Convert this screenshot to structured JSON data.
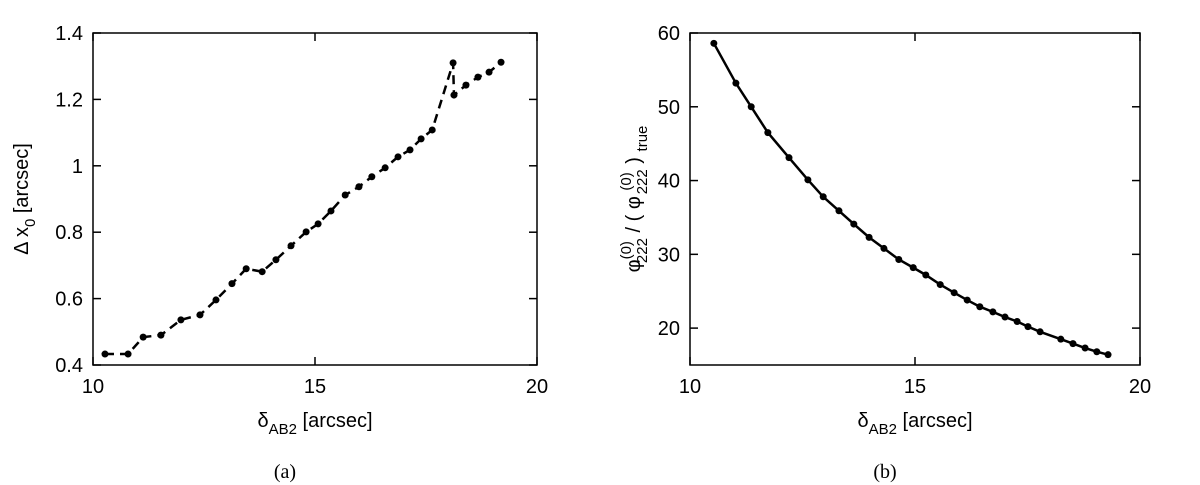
{
  "chart_data": [
    {
      "type": "line",
      "caption": "(a)",
      "xlabel": {
        "symbol": "δ",
        "sub": "AB2",
        "unit": "[arcsec]"
      },
      "ylabel": {
        "symbol": "Δ x",
        "sub": "0",
        "unit": "[arcsec]"
      },
      "x": [
        10.27,
        10.79,
        11.13,
        11.53,
        11.98,
        12.41,
        12.77,
        13.13,
        13.45,
        13.81,
        14.12,
        14.46,
        14.8,
        15.07,
        15.36,
        15.68,
        15.99,
        16.28,
        16.58,
        16.87,
        17.14,
        17.39,
        17.64,
        18.11,
        18.13,
        18.4,
        18.67,
        18.92,
        19.19
      ],
      "series": [
        {
          "color": "#000000",
          "line_style": "dashed",
          "values": [
            0.433,
            0.433,
            0.484,
            0.49,
            0.536,
            0.551,
            0.596,
            0.645,
            0.69,
            0.681,
            0.717,
            0.759,
            0.801,
            0.825,
            0.864,
            0.912,
            0.937,
            0.967,
            0.994,
            1.027,
            1.048,
            1.081,
            1.108,
            1.31,
            1.213,
            1.243,
            1.267,
            1.282,
            1.312
          ]
        }
      ],
      "xlim": [
        10,
        20
      ],
      "xticks": [
        10,
        15,
        20
      ],
      "ylim": [
        0.4,
        1.4
      ],
      "yticks": [
        0.4,
        0.6,
        0.8,
        1,
        1.2,
        1.4
      ]
    },
    {
      "type": "line",
      "caption": "(b)",
      "xlabel": {
        "symbol": "δ",
        "sub": "AB2",
        "unit": "[arcsec]"
      },
      "ylabel": {
        "symbol": "φ",
        "sup": "(0)",
        "sub": "222",
        "sep": "/ (",
        "symbol2": "φ",
        "sup2": "(0)",
        "sub2": "222",
        "close": ")",
        "close_sub": "true"
      },
      "x": [
        10.53,
        11.02,
        11.36,
        11.73,
        12.2,
        12.62,
        12.96,
        13.31,
        13.64,
        13.98,
        14.31,
        14.64,
        14.96,
        15.24,
        15.56,
        15.87,
        16.16,
        16.44,
        16.73,
        17.0,
        17.27,
        17.51,
        17.78,
        18.24,
        18.51,
        18.78,
        19.04,
        19.29
      ],
      "series": [
        {
          "color": "#000000",
          "line_style": "solid",
          "values": [
            58.6,
            53.2,
            50,
            46.5,
            43.1,
            40.1,
            37.8,
            35.9,
            34.1,
            32.3,
            30.8,
            29.3,
            28.2,
            27.2,
            25.9,
            24.8,
            23.8,
            22.9,
            22.2,
            21.5,
            20.9,
            20.2,
            19.5,
            18.5,
            17.9,
            17.3,
            16.8,
            16.4
          ]
        }
      ],
      "xlim": [
        10,
        20
      ],
      "xticks": [
        10,
        15,
        20
      ],
      "ylim": [
        15,
        60
      ],
      "yticks": [
        20,
        30,
        40,
        50,
        60
      ]
    }
  ]
}
